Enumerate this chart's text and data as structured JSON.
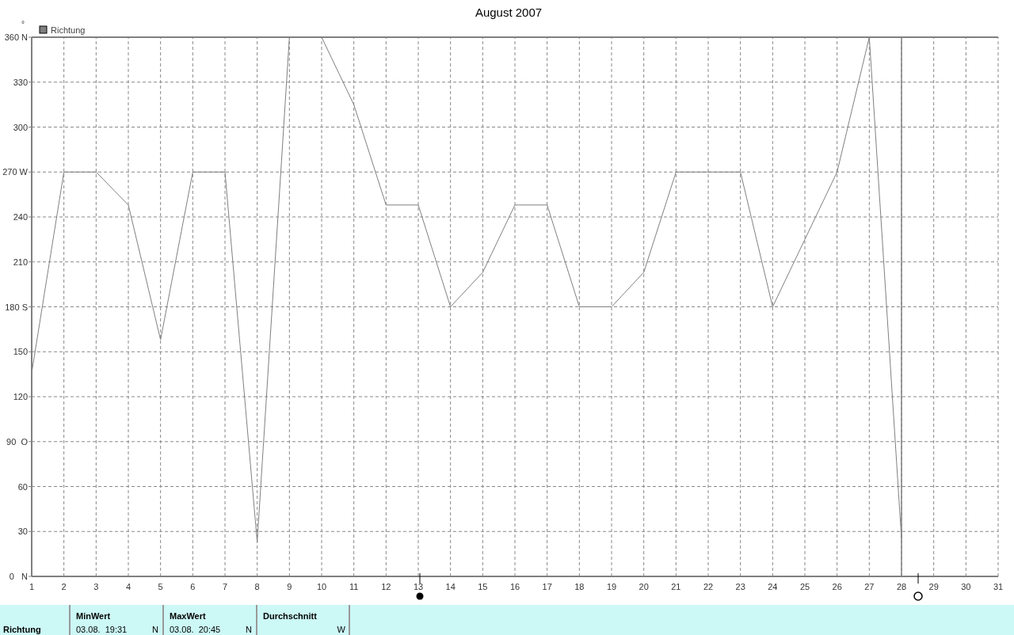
{
  "chart_data": {
    "type": "line",
    "title": "August 2007",
    "ylabel": "°",
    "x": [
      1,
      2,
      3,
      4,
      5,
      6,
      7,
      8,
      9,
      10,
      11,
      12,
      13,
      14,
      15,
      16,
      17,
      18,
      19,
      20,
      21,
      22,
      23,
      24,
      25,
      26,
      27,
      28
    ],
    "series": [
      {
        "name": "Richtung",
        "color": "#808080",
        "values": [
          136,
          270,
          270,
          248,
          158,
          270,
          270,
          23,
          360,
          360,
          315,
          248,
          248,
          180,
          203,
          248,
          248,
          180,
          180,
          203,
          270,
          270,
          270,
          180,
          225,
          270,
          360,
          25
        ]
      }
    ],
    "xlim": [
      1,
      31
    ],
    "xticks": [
      1,
      2,
      3,
      4,
      5,
      6,
      7,
      8,
      9,
      10,
      11,
      12,
      13,
      14,
      15,
      16,
      17,
      18,
      19,
      20,
      21,
      22,
      23,
      24,
      25,
      26,
      27,
      28,
      29,
      30,
      31
    ],
    "ylim": [
      0,
      360
    ],
    "yticks": [
      {
        "value": 0,
        "label": "0   N"
      },
      30,
      60,
      {
        "value": 90,
        "label": "90  O"
      },
      120,
      150,
      {
        "value": 180,
        "label": "180 S"
      },
      210,
      240,
      {
        "value": 270,
        "label": "270 W"
      },
      300,
      330,
      {
        "value": 360,
        "label": "360 N"
      }
    ],
    "grid": true,
    "legend": "top left",
    "marker": "none",
    "line_style": "solid",
    "ref_lines": [
      {
        "axis": "x",
        "value": 28,
        "color": "#808080"
      }
    ],
    "annotations": [
      "Richtung",
      "MinWert",
      "03.08.  19:31",
      "N",
      "MaxWert",
      "03.08.  20:45",
      "N",
      "Durchschnitt",
      "W"
    ]
  }
}
